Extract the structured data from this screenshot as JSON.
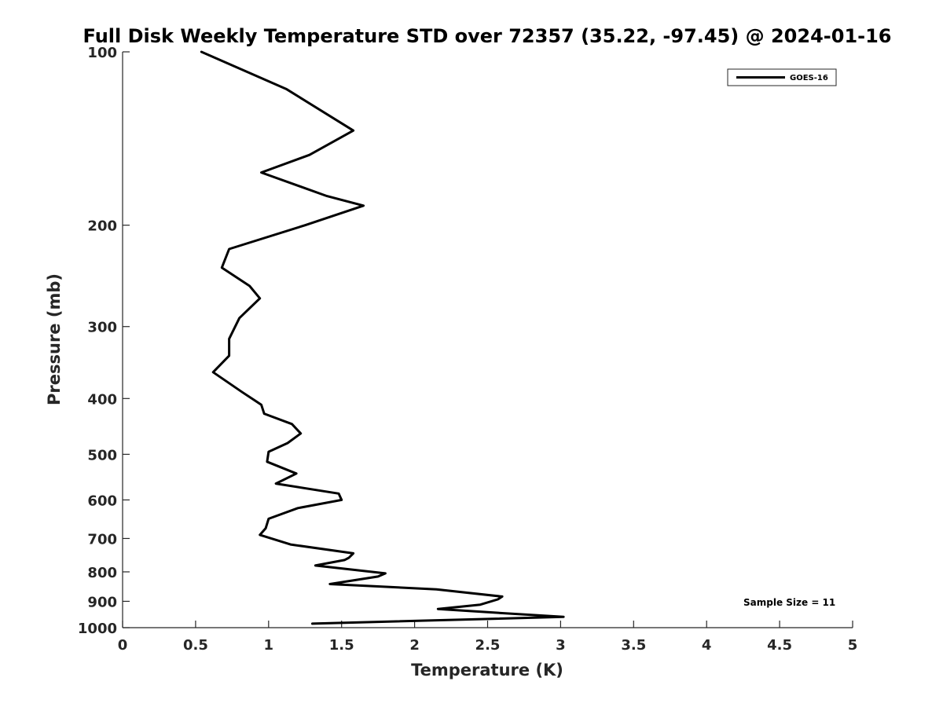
{
  "chart_data": {
    "type": "line",
    "title": "Full Disk Weekly Temperature STD over 72357 (35.22, -97.45) @ 2024-01-16",
    "xlabel": "Temperature (K)",
    "ylabel": "Pressure (mb)",
    "xlim": [
      0,
      5
    ],
    "ylim": [
      100,
      1000
    ],
    "yscale": "log",
    "y_reversed": true,
    "grid": false,
    "legend_position": "top-right",
    "x_ticks": [
      "0",
      "0.5",
      "1",
      "1.5",
      "2",
      "2.5",
      "3",
      "3.5",
      "4",
      "4.5",
      "5"
    ],
    "y_ticks": [
      "100",
      "200",
      "300",
      "400",
      "500",
      "600",
      "700",
      "800",
      "900",
      "1000"
    ],
    "annotation": "Sample Size = 11",
    "series": [
      {
        "name": "GOES-16",
        "color": "#000000",
        "points": [
          [
            0.54,
            100
          ],
          [
            1.12,
            116
          ],
          [
            1.58,
            137
          ],
          [
            1.28,
            151
          ],
          [
            0.95,
            162
          ],
          [
            1.4,
            178
          ],
          [
            1.65,
            185
          ],
          [
            1.25,
            200
          ],
          [
            0.73,
            220
          ],
          [
            0.68,
            237
          ],
          [
            0.87,
            255
          ],
          [
            0.94,
            268
          ],
          [
            0.8,
            290
          ],
          [
            0.73,
            315
          ],
          [
            0.73,
            337
          ],
          [
            0.62,
            360
          ],
          [
            0.82,
            390
          ],
          [
            0.95,
            410
          ],
          [
            0.97,
            425
          ],
          [
            1.16,
            443
          ],
          [
            1.22,
            460
          ],
          [
            1.13,
            478
          ],
          [
            1.0,
            495
          ],
          [
            0.99,
            515
          ],
          [
            1.19,
            540
          ],
          [
            1.05,
            562
          ],
          [
            1.48,
            585
          ],
          [
            1.5,
            600
          ],
          [
            1.2,
            620
          ],
          [
            1.0,
            647
          ],
          [
            0.98,
            672
          ],
          [
            0.94,
            690
          ],
          [
            1.15,
            717
          ],
          [
            1.58,
            743
          ],
          [
            1.55,
            756
          ],
          [
            1.52,
            763
          ],
          [
            1.32,
            780
          ],
          [
            1.8,
            805
          ],
          [
            1.75,
            815
          ],
          [
            1.42,
            840
          ],
          [
            2.15,
            858
          ],
          [
            2.6,
            883
          ],
          [
            2.57,
            893
          ],
          [
            2.45,
            912
          ],
          [
            2.16,
            928
          ],
          [
            2.5,
            940
          ],
          [
            3.02,
            958
          ],
          [
            1.3,
            984
          ]
        ]
      }
    ]
  }
}
